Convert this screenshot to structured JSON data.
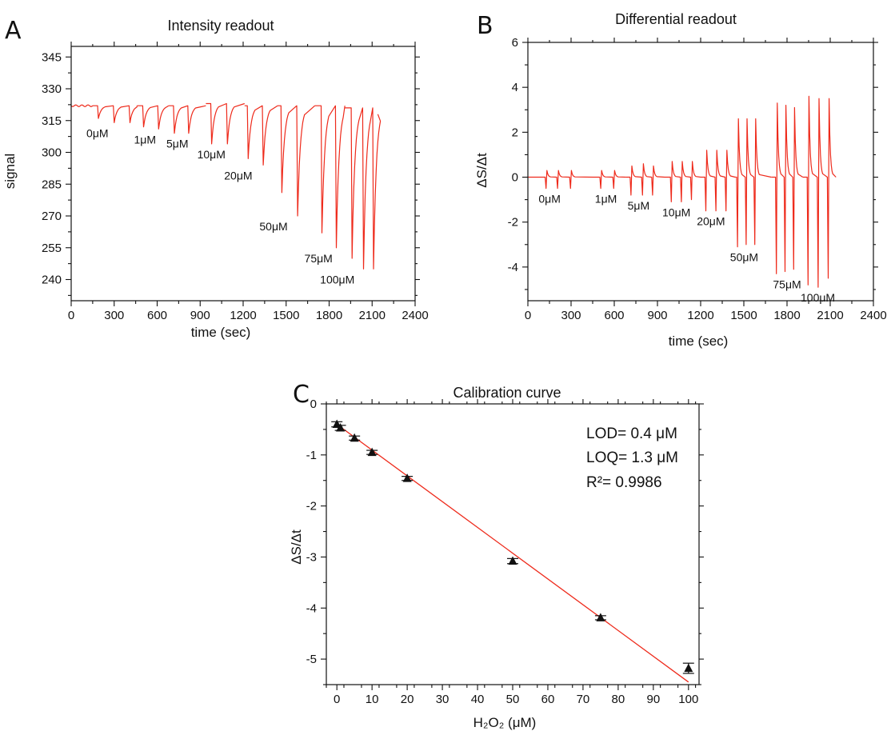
{
  "accent_color": "#ee2a1b",
  "marker_color": "#111111",
  "chart_data": [
    {
      "panel": "A",
      "type": "line",
      "title": "Intensity readout",
      "xlabel": "time (sec)",
      "ylabel": "signal",
      "xlim": [
        0,
        2400
      ],
      "ylim": [
        230,
        350
      ],
      "xticks": [
        0,
        300,
        600,
        900,
        1200,
        1500,
        1800,
        2100,
        2400
      ],
      "yticks": [
        240,
        255,
        270,
        285,
        300,
        315,
        330,
        345
      ],
      "baseline_before": {
        "x_start": 0,
        "x_end": 150,
        "y": 322
      },
      "groups": [
        {
          "label": "0μM",
          "concentration": 0,
          "baseline": 322,
          "dips": [
            {
              "t": 190,
              "min": 316
            },
            {
              "t": 300,
              "min": 314
            },
            {
              "t": 410,
              "min": 314
            }
          ],
          "end": 460
        },
        {
          "label": "1μM",
          "concentration": 1,
          "baseline": 322,
          "dips": [
            {
              "t": 505,
              "min": 312
            },
            {
              "t": 610,
              "min": 311
            }
          ],
          "end": 680
        },
        {
          "label": "5μM",
          "concentration": 5,
          "baseline": 322,
          "dips": [
            {
              "t": 720,
              "min": 309
            },
            {
              "t": 820,
              "min": 309
            }
          ],
          "end": 940
        },
        {
          "label": "10μM",
          "concentration": 10,
          "baseline": 323,
          "dips": [
            {
              "t": 980,
              "min": 304
            },
            {
              "t": 1090,
              "min": 304
            }
          ],
          "end": 1210
        },
        {
          "label": "20μM",
          "concentration": 20,
          "baseline": 322,
          "dips": [
            {
              "t": 1235,
              "min": 297
            },
            {
              "t": 1340,
              "min": 294
            }
          ],
          "end": 1440
        },
        {
          "label": "50μM",
          "concentration": 50,
          "baseline": 322,
          "dips": [
            {
              "t": 1470,
              "min": 281
            },
            {
              "t": 1580,
              "min": 270
            }
          ],
          "end": 1700
        },
        {
          "label": "75μM",
          "concentration": 75,
          "baseline": 322,
          "dips": [
            {
              "t": 1750,
              "min": 262
            },
            {
              "t": 1850,
              "min": 255
            }
          ],
          "end": 1910
        },
        {
          "label": "100μM",
          "concentration": 100,
          "baseline": 321,
          "dips": [
            {
              "t": 1960,
              "min": 250
            },
            {
              "t": 2040,
              "min": 245
            },
            {
              "t": 2110,
              "min": 245
            }
          ],
          "end": 2140,
          "end_value": 318
        }
      ]
    },
    {
      "panel": "B",
      "type": "line",
      "title": "Differential readout",
      "xlabel": "time (sec)",
      "ylabel": "ΔS/Δt",
      "xlim": [
        0,
        2400
      ],
      "ylim": [
        -5.5,
        6
      ],
      "xticks": [
        0,
        300,
        600,
        900,
        1200,
        1500,
        1800,
        2100,
        2400
      ],
      "yticks": [
        -4,
        -2,
        0,
        2,
        4,
        6
      ],
      "groups": [
        {
          "label": "0μM",
          "concentration": 0,
          "peaks": [
            {
              "t": 130,
              "min": -0.5,
              "max": 0.3
            },
            {
              "t": 210,
              "min": -0.5,
              "max": 0.3
            },
            {
              "t": 300,
              "min": -0.5,
              "max": 0.3
            }
          ],
          "end": 450
        },
        {
          "label": "1μM",
          "concentration": 1,
          "peaks": [
            {
              "t": 510,
              "min": -0.5,
              "max": 0.3
            },
            {
              "t": 600,
              "min": -0.5,
              "max": 0.3
            }
          ],
          "end": 680
        },
        {
          "label": "5μM",
          "concentration": 5,
          "peaks": [
            {
              "t": 720,
              "min": -0.8,
              "max": 0.5
            },
            {
              "t": 800,
              "min": -0.8,
              "max": 0.6
            },
            {
              "t": 870,
              "min": -0.8,
              "max": 0.5
            }
          ],
          "end": 950
        },
        {
          "label": "10μM",
          "concentration": 10,
          "peaks": [
            {
              "t": 1000,
              "min": -1.1,
              "max": 0.7
            },
            {
              "t": 1070,
              "min": -1.1,
              "max": 0.7
            },
            {
              "t": 1140,
              "min": -1.0,
              "max": 0.7
            }
          ],
          "end": 1200
        },
        {
          "label": "20μM",
          "concentration": 20,
          "peaks": [
            {
              "t": 1240,
              "min": -1.5,
              "max": 1.2
            },
            {
              "t": 1310,
              "min": -1.5,
              "max": 1.2
            },
            {
              "t": 1380,
              "min": -1.5,
              "max": 1.2
            }
          ],
          "end": 1440
        },
        {
          "label": "50μM",
          "concentration": 50,
          "peaks": [
            {
              "t": 1460,
              "min": -3.1,
              "max": 2.6
            },
            {
              "t": 1520,
              "min": -3.0,
              "max": 2.6
            },
            {
              "t": 1580,
              "min": -3.0,
              "max": 2.6
            }
          ],
          "end": 1690
        },
        {
          "label": "75μM",
          "concentration": 75,
          "peaks": [
            {
              "t": 1730,
              "min": -4.3,
              "max": 3.3
            },
            {
              "t": 1790,
              "min": -4.2,
              "max": 3.2
            },
            {
              "t": 1850,
              "min": -4.1,
              "max": 3.1
            }
          ],
          "end": 1910
        },
        {
          "label": "100μM",
          "concentration": 100,
          "peaks": [
            {
              "t": 1950,
              "min": -4.8,
              "max": 3.6
            },
            {
              "t": 2020,
              "min": -4.9,
              "max": 3.5
            },
            {
              "t": 2090,
              "min": -4.5,
              "max": 3.5
            }
          ],
          "end": 2140
        }
      ]
    },
    {
      "panel": "C",
      "type": "scatter",
      "title": "Calibration curve",
      "xlabel": "H₂O₂ (μM)",
      "ylabel": "ΔS/Δt",
      "xlim": [
        -3,
        103
      ],
      "ylim": [
        -5.5,
        0
      ],
      "xticks": [
        0,
        10,
        20,
        30,
        40,
        50,
        60,
        70,
        80,
        90,
        100
      ],
      "yticks": [
        -5,
        -4,
        -3,
        -2,
        -1,
        0
      ],
      "points": [
        {
          "x": 0,
          "y": -0.4,
          "err": 0.05
        },
        {
          "x": 1,
          "y": -0.47,
          "err": 0.05
        },
        {
          "x": 5,
          "y": -0.67,
          "err": 0.04
        },
        {
          "x": 10,
          "y": -0.95,
          "err": 0.04
        },
        {
          "x": 20,
          "y": -1.46,
          "err": 0.04
        },
        {
          "x": 50,
          "y": -3.08,
          "err": 0.05
        },
        {
          "x": 75,
          "y": -4.19,
          "err": 0.04
        },
        {
          "x": 100,
          "y": -5.18,
          "err": 0.1
        }
      ],
      "fit": {
        "x": [
          0,
          100
        ],
        "y": [
          -0.4,
          -5.45
        ]
      },
      "annotations": [
        "LOD= 0.4 μM",
        "LOQ= 1.3 μM",
        "R²= 0.9986"
      ],
      "legend_position": "top-right"
    }
  ]
}
